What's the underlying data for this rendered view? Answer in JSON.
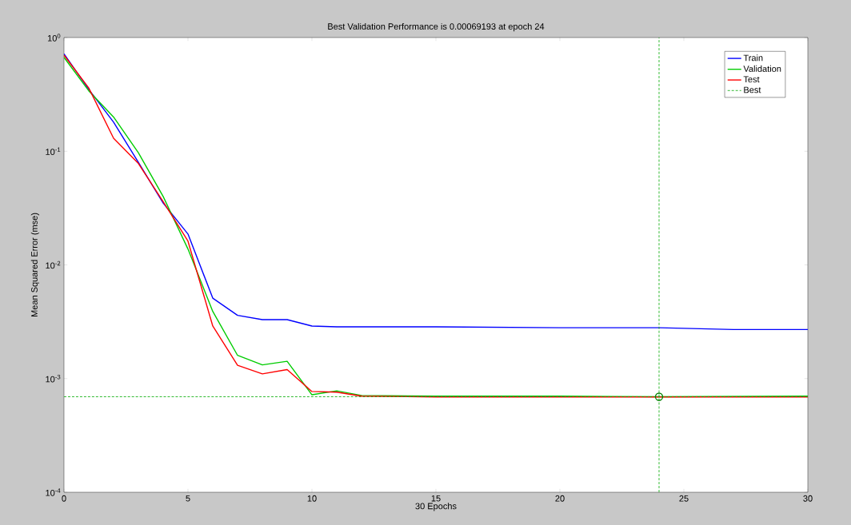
{
  "chart_data": {
    "type": "line",
    "title": "Best Validation Performance is 0.00069193 at epoch 24",
    "xlabel": "30 Epochs",
    "ylabel": "Mean Squared Error  (mse)",
    "log": "y",
    "marker": "none",
    "line_style": "solid",
    "legend": "top right",
    "grid": false,
    "xlim": [
      0,
      30
    ],
    "xticks": [
      0,
      5,
      10,
      15,
      20,
      25,
      30
    ],
    "ylim": [
      0.0001,
      1
    ],
    "yticks": [
      {
        "value": 0.0001,
        "label": "10$^{-4}$"
      },
      {
        "value": 0.001,
        "label": "10$^{-3}$"
      },
      {
        "value": 0.01,
        "label": "10$^{-2}$"
      },
      {
        "value": 0.1,
        "label": "10$^{-1}$"
      },
      {
        "value": 1,
        "label": "10$^{0}$"
      }
    ],
    "series": [
      {
        "name": "Train",
        "color": "#0000ff",
        "x": [
          0,
          1,
          2,
          3,
          4,
          5,
          6,
          7,
          8,
          9,
          10,
          11,
          15,
          20,
          24,
          27,
          30
        ],
        "values": [
          0.72,
          0.35,
          0.18,
          0.08,
          0.035,
          0.0187,
          0.0051,
          0.0036,
          0.0033,
          0.0033,
          0.0029,
          0.00285,
          0.00285,
          0.0028,
          0.0028,
          0.0027,
          0.0027
        ]
      },
      {
        "name": "Validation",
        "color": "#00cc00",
        "x": [
          0,
          1,
          2,
          3,
          4,
          5,
          6,
          7,
          8,
          9,
          10,
          11,
          12,
          15,
          20,
          24,
          30
        ],
        "values": [
          0.67,
          0.34,
          0.2,
          0.097,
          0.04,
          0.0138,
          0.0039,
          0.0016,
          0.00132,
          0.00142,
          0.00072,
          0.00078,
          0.00071,
          0.0007,
          0.0007,
          0.00069193,
          0.0007
        ]
      },
      {
        "name": "Test",
        "color": "#ff0000",
        "x": [
          0,
          1,
          2,
          3,
          4,
          5,
          6,
          7,
          8,
          9,
          10,
          11,
          12,
          15,
          20,
          24,
          30
        ],
        "values": [
          0.7,
          0.36,
          0.13,
          0.078,
          0.036,
          0.0162,
          0.0029,
          0.00131,
          0.0011,
          0.0012,
          0.00077,
          0.00076,
          0.0007,
          0.00069,
          0.00069,
          0.00069,
          0.00069
        ]
      },
      {
        "type": "scatter",
        "marker": "circle",
        "color": "#008000",
        "x": [
          24
        ],
        "values": [
          0.00069193
        ]
      }
    ],
    "ref_lines": [
      {
        "axis": "y",
        "value": 0.00069193,
        "label": "Best",
        "color": "#00aa00",
        "line_style": "dotted"
      },
      {
        "axis": "x",
        "value": 24,
        "label": null,
        "color": "#00aa00",
        "line_style": "dotted"
      }
    ]
  }
}
